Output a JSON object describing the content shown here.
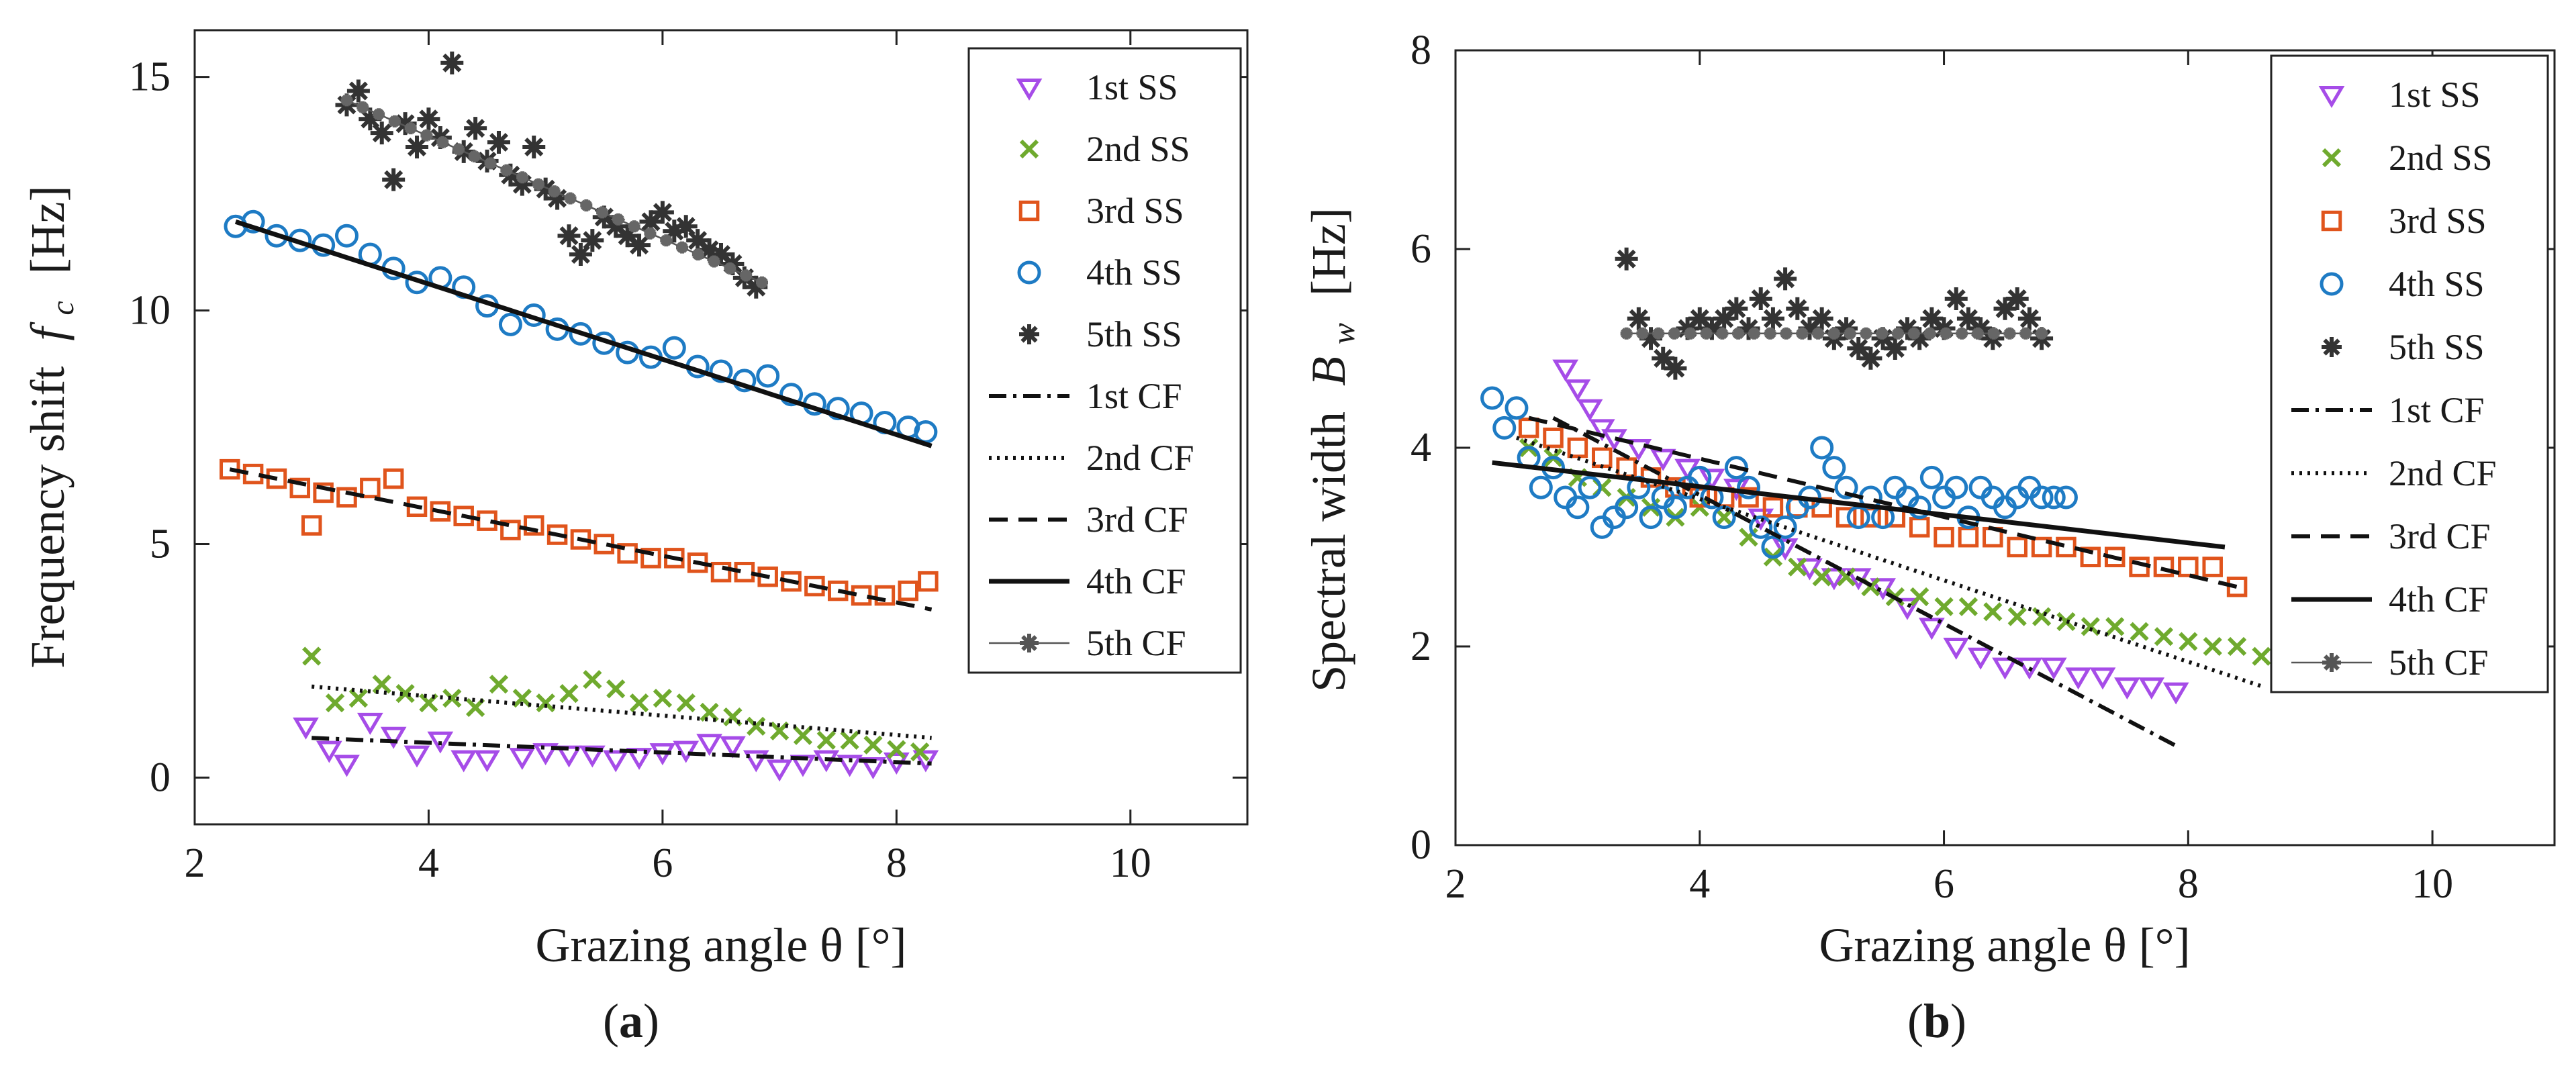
{
  "chart_data": [
    {
      "type": "scatter",
      "caption": "(a)",
      "caption_letter": "a",
      "xlabel": "Grazing angle θ [°]",
      "ylabel": "Frequency shift f_c [Hz]",
      "ylabel_main": "Frequency shift",
      "ylabel_sym": "f",
      "ylabel_sub": "c",
      "ylabel_unit": "[Hz]",
      "xlim": [
        2,
        11
      ],
      "ylim": [
        -1,
        16
      ],
      "xticks": [
        2,
        4,
        6,
        8,
        10
      ],
      "yticks": [
        0,
        5,
        10,
        15
      ],
      "xtick_labels": [
        "2",
        "4",
        "6",
        "8",
        "10"
      ],
      "ytick_labels": [
        "0",
        "5",
        "10",
        "15"
      ],
      "legend_position": "top-right",
      "legend": [
        "1st SS",
        "2nd SS",
        "3rd SS",
        "4th SS",
        "5th SS",
        "1st CF",
        "2nd CF",
        "3rd CF",
        "4th CF",
        "5th CF"
      ],
      "series": [
        {
          "name": "1st SS",
          "marker": "triangle-down",
          "color": "#A64CE8",
          "x": [
            2.95,
            3.15,
            3.3,
            3.5,
            3.7,
            3.9,
            4.1,
            4.3,
            4.5,
            4.8,
            5.0,
            5.2,
            5.4,
            5.6,
            5.8,
            6.0,
            6.2,
            6.4,
            6.6,
            6.8,
            7.0,
            7.2,
            7.4,
            7.6,
            7.8,
            8.0,
            8.25
          ],
          "y": [
            1.1,
            0.6,
            0.3,
            1.2,
            0.9,
            0.5,
            0.8,
            0.4,
            0.4,
            0.45,
            0.55,
            0.5,
            0.5,
            0.4,
            0.45,
            0.55,
            0.6,
            0.75,
            0.7,
            0.4,
            0.2,
            0.3,
            0.4,
            0.3,
            0.25,
            0.35,
            0.4
          ]
        },
        {
          "name": "2nd SS",
          "marker": "x",
          "color": "#6FAA2E",
          "x": [
            3.0,
            3.2,
            3.4,
            3.6,
            3.8,
            4.0,
            4.2,
            4.4,
            4.6,
            4.8,
            5.0,
            5.2,
            5.4,
            5.6,
            5.8,
            6.0,
            6.2,
            6.4,
            6.6,
            6.8,
            7.0,
            7.2,
            7.4,
            7.6,
            7.8,
            8.0,
            8.2
          ],
          "y": [
            2.6,
            1.6,
            1.7,
            2.0,
            1.8,
            1.6,
            1.7,
            1.5,
            2.0,
            1.7,
            1.6,
            1.8,
            2.1,
            1.9,
            1.6,
            1.7,
            1.6,
            1.4,
            1.3,
            1.1,
            1.0,
            0.9,
            0.8,
            0.8,
            0.7,
            0.6,
            0.55
          ]
        },
        {
          "name": "3rd SS",
          "marker": "square",
          "color": "#E0541C",
          "x": [
            2.3,
            2.5,
            2.7,
            2.9,
            3.0,
            3.1,
            3.3,
            3.5,
            3.7,
            3.9,
            4.1,
            4.3,
            4.5,
            4.7,
            4.9,
            5.1,
            5.3,
            5.5,
            5.7,
            5.9,
            6.1,
            6.3,
            6.5,
            6.7,
            6.9,
            7.1,
            7.3,
            7.5,
            7.7,
            7.9,
            8.1,
            8.27
          ],
          "y": [
            6.6,
            6.5,
            6.4,
            6.2,
            5.4,
            6.1,
            6.0,
            6.2,
            6.4,
            5.8,
            5.7,
            5.6,
            5.5,
            5.3,
            5.4,
            5.2,
            5.1,
            5.0,
            4.8,
            4.7,
            4.7,
            4.6,
            4.4,
            4.4,
            4.3,
            4.2,
            4.1,
            4.0,
            3.9,
            3.9,
            4.0,
            4.2
          ]
        },
        {
          "name": "4th SS",
          "marker": "circle",
          "color": "#1E7BC4",
          "x": [
            2.35,
            2.5,
            2.7,
            2.9,
            3.1,
            3.3,
            3.5,
            3.7,
            3.9,
            4.1,
            4.3,
            4.5,
            4.7,
            4.9,
            5.1,
            5.3,
            5.5,
            5.7,
            5.9,
            6.1,
            6.3,
            6.5,
            6.7,
            6.9,
            7.1,
            7.3,
            7.5,
            7.7,
            7.9,
            8.1,
            8.25
          ],
          "y": [
            11.8,
            11.9,
            11.6,
            11.5,
            11.4,
            11.6,
            11.2,
            10.9,
            10.6,
            10.7,
            10.5,
            10.1,
            9.7,
            9.9,
            9.6,
            9.5,
            9.3,
            9.1,
            9.0,
            9.2,
            8.8,
            8.7,
            8.5,
            8.6,
            8.2,
            8.0,
            7.9,
            7.8,
            7.6,
            7.5,
            7.4
          ]
        },
        {
          "name": "5th SS",
          "marker": "asterisk",
          "color": "#333333",
          "x": [
            3.3,
            3.4,
            3.5,
            3.6,
            3.7,
            3.8,
            3.9,
            4.0,
            4.1,
            4.2,
            4.3,
            4.4,
            4.5,
            4.6,
            4.7,
            4.8,
            4.9,
            5.0,
            5.1,
            5.2,
            5.3,
            5.4,
            5.5,
            5.6,
            5.7,
            5.8,
            5.9,
            6.0,
            6.1,
            6.2,
            6.3,
            6.4,
            6.5,
            6.6,
            6.7,
            6.8
          ],
          "y": [
            14.4,
            14.7,
            14.1,
            13.8,
            12.8,
            14.0,
            13.5,
            14.1,
            13.7,
            15.3,
            13.4,
            13.9,
            13.2,
            13.6,
            12.9,
            12.7,
            13.5,
            12.6,
            12.4,
            11.6,
            11.2,
            11.5,
            12.0,
            11.8,
            11.6,
            11.4,
            11.9,
            12.1,
            11.7,
            11.8,
            11.5,
            11.3,
            11.2,
            11.0,
            10.7,
            10.5
          ]
        }
      ],
      "fits": [
        {
          "name": "1st CF",
          "style": "dashdot",
          "x": [
            3.0,
            8.3
          ],
          "y": [
            0.85,
            0.3
          ]
        },
        {
          "name": "2nd CF",
          "style": "dotted",
          "x": [
            3.0,
            8.3
          ],
          "y": [
            1.95,
            0.85
          ]
        },
        {
          "name": "3rd CF",
          "style": "dashed",
          "x": [
            2.3,
            8.3
          ],
          "y": [
            6.6,
            3.6
          ]
        },
        {
          "name": "4th CF",
          "style": "solid",
          "x": [
            2.35,
            8.3
          ],
          "y": [
            11.9,
            7.1
          ]
        },
        {
          "name": "5th CF",
          "style": "star-thin",
          "x": [
            3.3,
            6.85
          ],
          "y": [
            14.5,
            10.6
          ]
        }
      ]
    },
    {
      "type": "scatter",
      "caption": "(b)",
      "caption_letter": "b",
      "xlabel": "Grazing angle θ [°]",
      "ylabel": "Spectral width B_w [Hz]",
      "ylabel_main": "Spectral width",
      "ylabel_sym": "B",
      "ylabel_sub": "w",
      "ylabel_unit": "[Hz]",
      "xlim": [
        2,
        11
      ],
      "ylim": [
        0,
        8
      ],
      "xticks": [
        2,
        4,
        6,
        8,
        10
      ],
      "yticks": [
        0,
        2,
        4,
        6,
        8
      ],
      "xtick_labels": [
        "2",
        "4",
        "6",
        "8",
        "10"
      ],
      "ytick_labels": [
        "0",
        "2",
        "4",
        "6",
        "8"
      ],
      "legend_position": "top-right",
      "legend": [
        "1st SS",
        "2nd SS",
        "3rd SS",
        "4th SS",
        "5th SS",
        "1st CF",
        "2nd CF",
        "3rd CF",
        "4th CF",
        "5th CF"
      ],
      "series": [
        {
          "name": "1st SS",
          "marker": "triangle-down",
          "color": "#A64CE8",
          "x": [
            2.9,
            3.0,
            3.1,
            3.2,
            3.3,
            3.5,
            3.7,
            3.9,
            4.1,
            4.3,
            4.5,
            4.7,
            4.9,
            5.1,
            5.3,
            5.5,
            5.7,
            5.9,
            6.1,
            6.3,
            6.5,
            6.7,
            6.9,
            7.1,
            7.3,
            7.5,
            7.7,
            7.9
          ],
          "y": [
            4.8,
            4.6,
            4.4,
            4.2,
            4.1,
            4.0,
            3.9,
            3.8,
            3.7,
            3.6,
            3.3,
            3.0,
            2.8,
            2.7,
            2.7,
            2.6,
            2.4,
            2.2,
            2.0,
            1.9,
            1.8,
            1.8,
            1.8,
            1.7,
            1.7,
            1.6,
            1.6,
            1.55
          ]
        },
        {
          "name": "2nd SS",
          "marker": "x",
          "color": "#6FAA2E",
          "x": [
            2.6,
            2.8,
            3.0,
            3.2,
            3.4,
            3.6,
            3.8,
            4.0,
            4.2,
            4.4,
            4.6,
            4.8,
            5.0,
            5.2,
            5.4,
            5.6,
            5.8,
            6.0,
            6.2,
            6.4,
            6.6,
            6.8,
            7.0,
            7.2,
            7.4,
            7.6,
            7.8,
            8.0,
            8.2,
            8.4,
            8.6
          ],
          "y": [
            4.0,
            3.9,
            3.7,
            3.6,
            3.5,
            3.4,
            3.3,
            3.4,
            3.3,
            3.1,
            2.9,
            2.8,
            2.7,
            2.7,
            2.6,
            2.5,
            2.5,
            2.4,
            2.4,
            2.35,
            2.3,
            2.3,
            2.25,
            2.2,
            2.2,
            2.15,
            2.1,
            2.05,
            2.0,
            2.0,
            1.9
          ]
        },
        {
          "name": "3rd SS",
          "marker": "square",
          "color": "#E0541C",
          "x": [
            2.6,
            2.8,
            3.0,
            3.2,
            3.4,
            3.6,
            3.8,
            4.0,
            4.2,
            4.4,
            4.6,
            4.8,
            5.0,
            5.2,
            5.4,
            5.6,
            5.8,
            6.0,
            6.2,
            6.4,
            6.6,
            6.8,
            7.0,
            7.2,
            7.4,
            7.6,
            7.8,
            8.0,
            8.2,
            8.4
          ],
          "y": [
            4.2,
            4.1,
            4.0,
            3.9,
            3.8,
            3.7,
            3.6,
            3.5,
            3.5,
            3.5,
            3.4,
            3.4,
            3.4,
            3.3,
            3.3,
            3.3,
            3.2,
            3.1,
            3.1,
            3.1,
            3.0,
            3.0,
            3.0,
            2.9,
            2.9,
            2.8,
            2.8,
            2.8,
            2.8,
            2.6
          ]
        },
        {
          "name": "4th SS",
          "marker": "circle",
          "color": "#1E7BC4",
          "x": [
            2.3,
            2.4,
            2.5,
            2.6,
            2.7,
            2.8,
            2.9,
            3.0,
            3.1,
            3.2,
            3.3,
            3.4,
            3.5,
            3.6,
            3.7,
            3.8,
            3.9,
            4.0,
            4.1,
            4.2,
            4.3,
            4.4,
            4.5,
            4.6,
            4.7,
            4.8,
            4.9,
            5.0,
            5.1,
            5.2,
            5.3,
            5.4,
            5.5,
            5.6,
            5.7,
            5.8,
            5.9,
            6.0,
            6.1,
            6.2,
            6.3,
            6.4,
            6.5,
            6.6,
            6.7,
            6.8,
            6.9,
            7.0
          ],
          "y": [
            4.5,
            4.2,
            4.4,
            3.9,
            3.6,
            3.8,
            3.5,
            3.4,
            3.6,
            3.2,
            3.3,
            3.4,
            3.6,
            3.3,
            3.5,
            3.4,
            3.6,
            3.7,
            3.5,
            3.3,
            3.8,
            3.6,
            3.2,
            3.0,
            3.2,
            3.4,
            3.5,
            4.0,
            3.8,
            3.6,
            3.3,
            3.5,
            3.3,
            3.6,
            3.5,
            3.4,
            3.7,
            3.5,
            3.6,
            3.3,
            3.6,
            3.5,
            3.4,
            3.5,
            3.6,
            3.5,
            3.5,
            3.5
          ]
        },
        {
          "name": "5th SS",
          "marker": "asterisk",
          "color": "#333333",
          "x": [
            3.4,
            3.5,
            3.6,
            3.7,
            3.8,
            3.9,
            4.0,
            4.1,
            4.2,
            4.3,
            4.4,
            4.5,
            4.6,
            4.7,
            4.8,
            4.9,
            5.0,
            5.1,
            5.2,
            5.3,
            5.4,
            5.5,
            5.6,
            5.7,
            5.8,
            5.9,
            6.0,
            6.1,
            6.2,
            6.3,
            6.4,
            6.5,
            6.6,
            6.7,
            6.8
          ],
          "y": [
            5.9,
            5.3,
            5.1,
            4.9,
            4.8,
            5.2,
            5.3,
            5.2,
            5.3,
            5.4,
            5.2,
            5.5,
            5.3,
            5.7,
            5.4,
            5.2,
            5.3,
            5.1,
            5.2,
            5.0,
            4.9,
            5.1,
            5.0,
            5.2,
            5.1,
            5.3,
            5.2,
            5.5,
            5.3,
            5.2,
            5.1,
            5.4,
            5.5,
            5.3,
            5.1
          ]
        }
      ],
      "fits": [
        {
          "name": "1st CF",
          "style": "dashdot",
          "x": [
            2.8,
            7.9
          ],
          "y": [
            4.3,
            1.0
          ]
        },
        {
          "name": "2nd CF",
          "style": "dotted",
          "x": [
            2.5,
            8.6
          ],
          "y": [
            4.1,
            1.6
          ]
        },
        {
          "name": "3rd CF",
          "style": "dashed",
          "x": [
            2.6,
            8.4
          ],
          "y": [
            4.3,
            2.6
          ]
        },
        {
          "name": "4th CF",
          "style": "solid",
          "x": [
            2.3,
            8.3
          ],
          "y": [
            3.85,
            3.0
          ]
        },
        {
          "name": "5th CF",
          "style": "star-thin",
          "x": [
            3.4,
            6.8
          ],
          "y": [
            5.15,
            5.15
          ]
        }
      ]
    }
  ]
}
